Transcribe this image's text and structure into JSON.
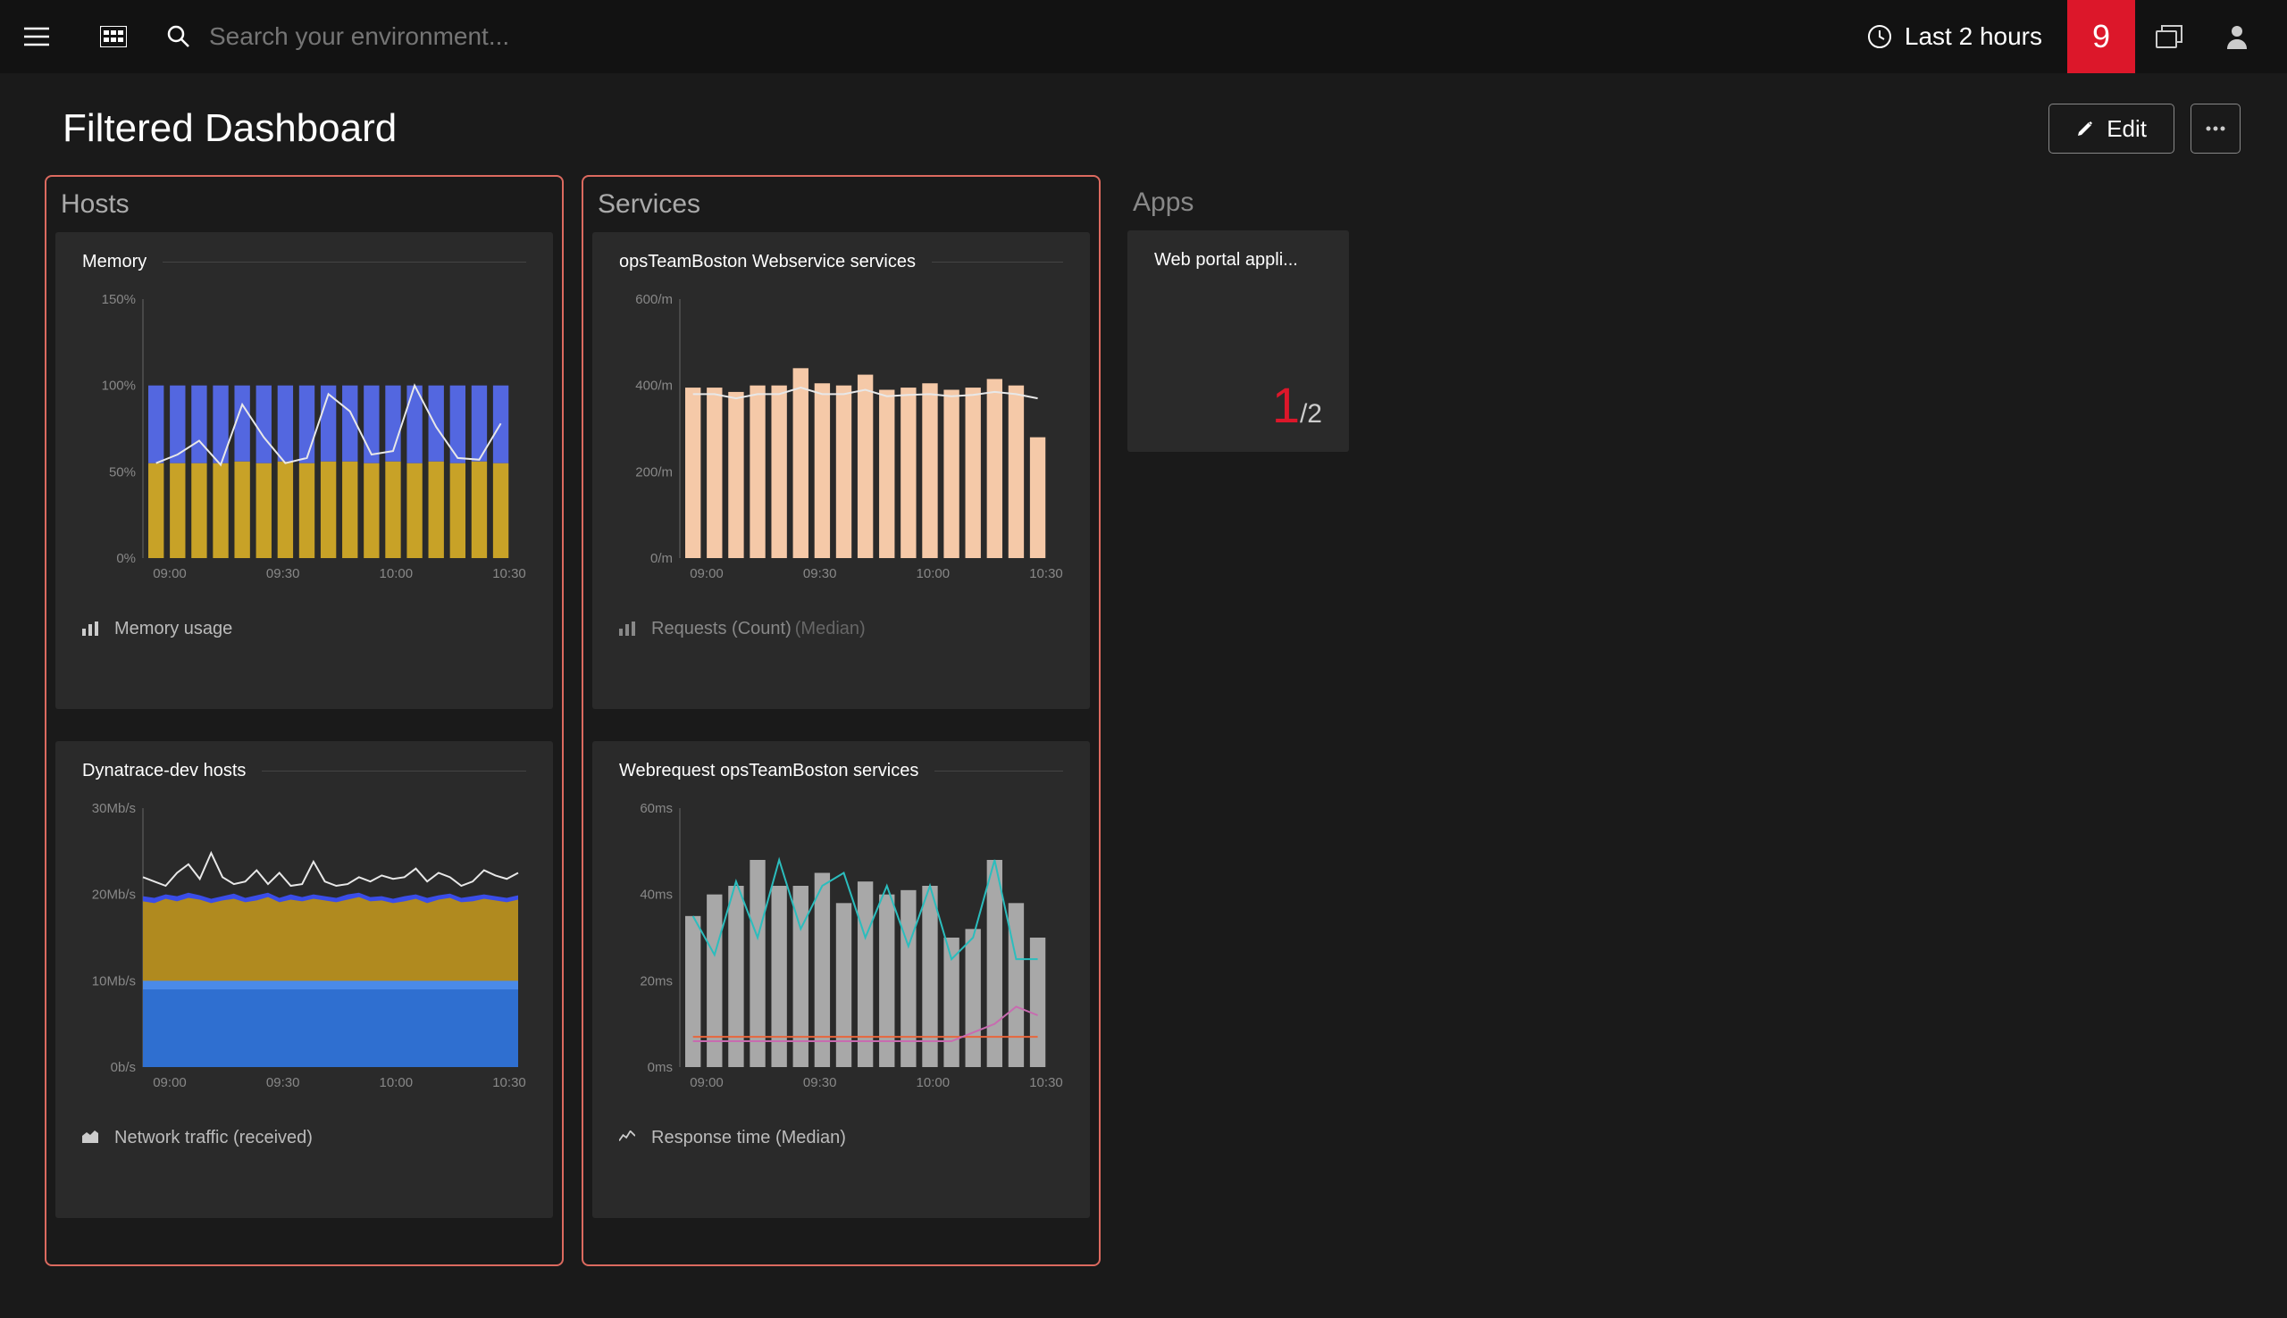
{
  "topbar": {
    "search_placeholder": "Search your environment...",
    "time_label": "Last 2 hours",
    "badge_count": "9"
  },
  "header": {
    "title": "Filtered Dashboard",
    "edit_label": "Edit"
  },
  "sections": {
    "hosts": {
      "title": "Hosts"
    },
    "services": {
      "title": "Services"
    },
    "apps": {
      "title": "Apps"
    }
  },
  "tiles": {
    "memory": {
      "title": "Memory",
      "footer_icon": "bar",
      "footer_label": "Memory usage",
      "chart": {
        "y_ticks": [
          "150%",
          "100%",
          "50%",
          "0%"
        ],
        "x_ticks": [
          "09:00",
          "09:30",
          "10:00",
          "10:30"
        ],
        "y_range": [
          0,
          150
        ],
        "bars": {
          "count": 17,
          "categories": [
            "0",
            "1",
            "2",
            "3",
            "4",
            "5",
            "6",
            "7",
            "8",
            "9",
            "10",
            "11",
            "12",
            "13",
            "14",
            "15",
            "16"
          ],
          "series": [
            {
              "color": "#c8a227",
              "values": [
                55,
                55,
                55,
                55,
                56,
                55,
                56,
                55,
                56,
                56,
                55,
                56,
                55,
                56,
                55,
                56,
                55
              ]
            },
            {
              "color": "#5367e0",
              "values": [
                45,
                45,
                45,
                45,
                44,
                45,
                44,
                45,
                44,
                44,
                45,
                44,
                45,
                44,
                45,
                44,
                45
              ]
            }
          ]
        },
        "line": {
          "color": "#e8e8e8",
          "values": [
            55,
            60,
            68,
            54,
            89,
            70,
            55,
            58,
            95,
            85,
            60,
            62,
            100,
            76,
            58,
            57,
            78
          ]
        }
      }
    },
    "dynatrace": {
      "title": "Dynatrace-dev hosts",
      "footer_icon": "area",
      "footer_label": "Network traffic (received)",
      "chart": {
        "y_ticks": [
          "30Mb/s",
          "20Mb/s",
          "10Mb/s",
          "0b/s"
        ],
        "x_ticks": [
          "09:00",
          "09:30",
          "10:00",
          "10:30"
        ],
        "y_range": [
          0,
          30
        ],
        "areas": [
          {
            "color": "#2f6fd0",
            "values": [
              9,
              9,
              9,
              9,
              9,
              9,
              9,
              9,
              9,
              9,
              9,
              9,
              9,
              9,
              9,
              9,
              9,
              9,
              9,
              9,
              9,
              9,
              9,
              9,
              9,
              9,
              9,
              9,
              9,
              9,
              9,
              9,
              9,
              9
            ]
          },
          {
            "color": "#4a8ae8",
            "values": [
              10,
              10,
              10,
              10,
              10,
              10,
              10,
              10,
              10,
              10,
              10,
              10,
              10,
              10,
              10,
              10,
              10,
              10,
              10,
              10,
              10,
              10,
              10,
              10,
              10,
              10,
              10,
              10,
              10,
              10,
              10,
              10,
              10,
              10
            ]
          },
          {
            "color": "#b08a1f",
            "values": [
              19.2,
              19.0,
              19.5,
              19.2,
              19.6,
              19.4,
              19.0,
              19.3,
              19.5,
              19.1,
              19.3,
              19.7,
              19.1,
              19.4,
              19.2,
              19.5,
              19.3,
              19.1,
              19.4,
              19.7,
              19.2,
              19.3,
              19.0,
              19.2,
              19.5,
              19.0,
              19.4,
              19.6,
              19.1,
              19.2,
              19.5,
              19.3,
              19.1,
              19.4
            ]
          },
          {
            "color": "#3a4de8",
            "values": [
              19.8,
              19.6,
              20.0,
              19.8,
              20.2,
              19.9,
              19.5,
              19.8,
              20.1,
              19.6,
              19.9,
              20.2,
              19.6,
              20.0,
              19.7,
              20.0,
              19.8,
              19.6,
              20.0,
              20.2,
              19.7,
              19.8,
              19.5,
              19.8,
              20.0,
              19.6,
              19.9,
              20.1,
              19.6,
              19.8,
              20.0,
              19.8,
              19.6,
              19.9
            ]
          }
        ],
        "line": {
          "color": "#e8e8e8",
          "values": [
            22,
            21.5,
            21,
            22.5,
            23.5,
            21.8,
            24.8,
            22,
            21.2,
            21.5,
            22.8,
            21.2,
            22.5,
            21,
            21.2,
            23.8,
            21.5,
            21,
            21.2,
            22,
            21.5,
            22.2,
            21.8,
            22,
            23,
            21.5,
            22.5,
            22,
            21,
            21.5,
            22.8,
            22.2,
            21.8,
            22.5
          ]
        }
      }
    },
    "opsTeam": {
      "title": "opsTeamBoston Webservice services",
      "footer_icon": "bar",
      "footer_label": "Requests (Count)",
      "footer_sub": "(Median)",
      "chart": {
        "y_ticks": [
          "600/m",
          "400/m",
          "200/m",
          "0/m"
        ],
        "x_ticks": [
          "09:00",
          "09:30",
          "10:00",
          "10:30"
        ],
        "y_range": [
          0,
          600
        ],
        "bars": {
          "count": 17,
          "color": "#f5c9a8",
          "values": [
            395,
            395,
            385,
            400,
            400,
            440,
            405,
            400,
            425,
            390,
            395,
            405,
            390,
            395,
            415,
            400,
            280
          ]
        },
        "line": {
          "color": "#e8e8e8",
          "values": [
            380,
            380,
            370,
            380,
            380,
            395,
            380,
            380,
            390,
            375,
            378,
            380,
            375,
            378,
            385,
            380,
            370
          ]
        }
      }
    },
    "webreq": {
      "title": "Webrequest opsTeamBoston services",
      "footer_icon": "line",
      "footer_label": "Response time (Median)",
      "chart": {
        "y_ticks": [
          "60ms",
          "40ms",
          "20ms",
          "0ms"
        ],
        "x_ticks": [
          "09:00",
          "09:30",
          "10:00",
          "10:30"
        ],
        "y_range": [
          0,
          60
        ],
        "bars": {
          "count": 17,
          "color": "#a8a8a8",
          "values": [
            35,
            40,
            42,
            48,
            42,
            42,
            45,
            38,
            43,
            40,
            41,
            42,
            30,
            32,
            48,
            38,
            30
          ]
        },
        "lines": [
          {
            "color": "#2bbdbd",
            "values": [
              35,
              26,
              43,
              30,
              48,
              32,
              42,
              45,
              30,
              42,
              28,
              42,
              25,
              30,
              48,
              25,
              25
            ]
          },
          {
            "color": "#e8663c",
            "values": [
              7,
              7,
              7,
              7,
              7,
              7,
              7,
              7,
              7,
              7,
              7,
              7,
              7,
              7,
              7,
              7,
              7
            ]
          },
          {
            "color": "#c86bb0",
            "values": [
              6,
              6,
              6,
              6,
              6,
              6,
              6,
              6,
              6,
              6,
              6,
              6,
              6,
              8,
              10,
              14,
              12
            ]
          }
        ]
      }
    },
    "apps_tile": {
      "title": "Web portal appli...",
      "big": "1",
      "frac": "/2"
    }
  },
  "colors": {
    "bg": "#1a1a1a",
    "tile_bg": "#2a2a2a",
    "border_red": "#dc6a5f",
    "accent_red": "#dc172a",
    "text": "#cccccc",
    "grid": "#444444"
  }
}
